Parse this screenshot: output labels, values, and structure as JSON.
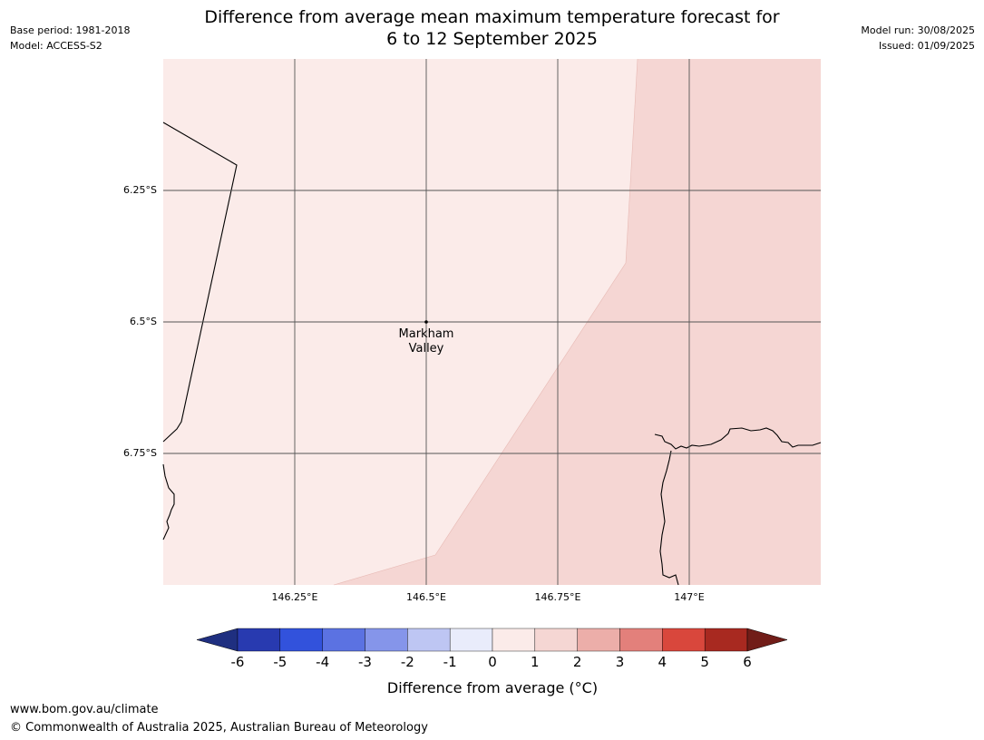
{
  "header": {
    "base_period": "Base period: 1981-2018",
    "model": "Model: ACCESS-S2",
    "model_run": "Model run: 30/08/2025",
    "issued": "Issued: 01/09/2025",
    "title_line1": "Difference from average mean maximum temperature forecast for",
    "title_line2": "6 to 12 September 2025"
  },
  "map": {
    "lat_labels": [
      "6.25°S",
      "6.5°S",
      "6.75°S"
    ],
    "lon_labels": [
      "146.25°E",
      "146.5°E",
      "146.75°E",
      "147°E"
    ],
    "place": {
      "name_line1": "Markham",
      "name_line2": "Valley"
    },
    "fill_colors": {
      "zero_to_one": "#fbebe9",
      "one_to_two": "#f5d6d3"
    },
    "grid_color": "#555555"
  },
  "legend": {
    "ticks": [
      "-6",
      "-5",
      "-4",
      "-3",
      "-2",
      "-1",
      "0",
      "1",
      "2",
      "3",
      "4",
      "5",
      "6"
    ],
    "colors": [
      "#1f2f80",
      "#283ab0",
      "#3252dc",
      "#5b72e2",
      "#8595ea",
      "#bec6f3",
      "#e9ecfb",
      "#fbebe9",
      "#f5d6d3",
      "#ecaea9",
      "#e3807b",
      "#d9473c",
      "#a82920",
      "#711d18"
    ],
    "label": "Difference from average (°C)"
  },
  "footer": {
    "url": "www.bom.gov.au/climate",
    "copyright": "© Commonwealth of Australia 2025, Australian Bureau of Meteorology"
  }
}
